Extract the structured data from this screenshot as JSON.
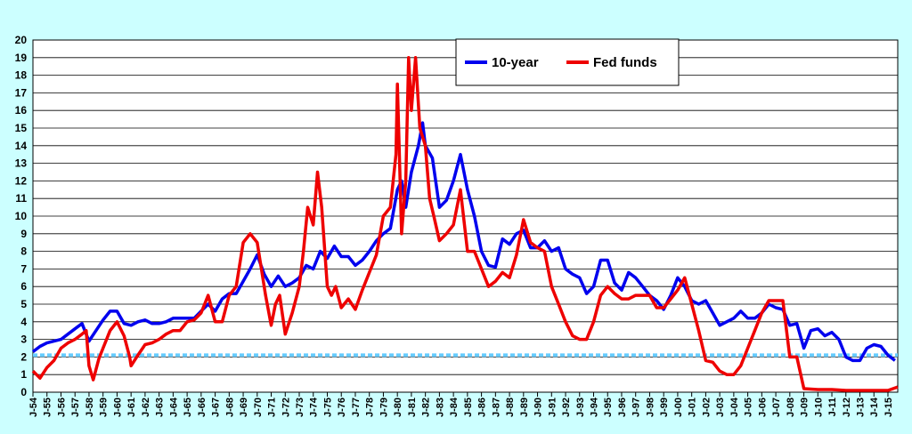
{
  "chart_data": {
    "type": "line",
    "title": "",
    "xlabel": "",
    "ylabel": "",
    "ylim": [
      0,
      20
    ],
    "yticks": [
      "0",
      "1",
      "2",
      "3",
      "4",
      "5",
      "6",
      "7",
      "8",
      "9",
      "10",
      "11",
      "12",
      "13",
      "14",
      "15",
      "16",
      "17",
      "18",
      "19",
      "20"
    ],
    "xlim": [
      1954,
      2015.7
    ],
    "xticks": [
      "J-54",
      "J-55",
      "J-56",
      "J-57",
      "J-58",
      "J-59",
      "J-60",
      "J-61",
      "J-62",
      "J-63",
      "J-64",
      "J-65",
      "J-66",
      "J-67",
      "J-68",
      "J-69",
      "J-70",
      "J-71",
      "J-72",
      "J-73",
      "J-74",
      "J-75",
      "J-76",
      "J-77",
      "J-78",
      "J-79",
      "J-80",
      "J-81",
      "J-82",
      "J-83",
      "J-84",
      "J-85",
      "J-86",
      "J-87",
      "J-88",
      "J-89",
      "J-90",
      "J-91",
      "J-92",
      "J-93",
      "J-94",
      "J-95",
      "J-96",
      "J-97",
      "J-98",
      "J-99",
      "J-00",
      "J-01",
      "J-02",
      "J-03",
      "J-04",
      "J-05",
      "J-06",
      "J-07",
      "J-08",
      "J-09",
      "J-10",
      "J-11",
      "J-12",
      "J-13",
      "J-14",
      "J-15"
    ],
    "grid": true,
    "legend_position": "top-center",
    "reference_line": {
      "value": 2.1,
      "color": "#66ccff"
    },
    "series": [
      {
        "name": "10-year",
        "color": "#0000ee",
        "x": [
          1954,
          1954.5,
          1955,
          1955.5,
          1956,
          1956.5,
          1957,
          1957.5,
          1958,
          1958.5,
          1959,
          1959.5,
          1960,
          1960.5,
          1961,
          1961.5,
          1962,
          1962.5,
          1963,
          1963.5,
          1964,
          1964.5,
          1965,
          1965.5,
          1966,
          1966.5,
          1967,
          1967.5,
          1968,
          1968.5,
          1969,
          1969.5,
          1970,
          1970.5,
          1971,
          1971.5,
          1972,
          1972.5,
          1973,
          1973.5,
          1974,
          1974.5,
          1975,
          1975.5,
          1976,
          1976.5,
          1977,
          1977.5,
          1978,
          1978.5,
          1979,
          1979.5,
          1980,
          1980.3,
          1980.6,
          1981,
          1981.5,
          1981.8,
          1982,
          1982.5,
          1983,
          1983.5,
          1984,
          1984.5,
          1985,
          1985.5,
          1986,
          1986.5,
          1987,
          1987.5,
          1988,
          1988.5,
          1989,
          1989.5,
          1990,
          1990.5,
          1991,
          1991.5,
          1992,
          1992.5,
          1993,
          1993.5,
          1994,
          1994.5,
          1995,
          1995.5,
          1996,
          1996.5,
          1997,
          1997.5,
          1998,
          1998.5,
          1999,
          1999.5,
          2000,
          2000.5,
          2001,
          2001.5,
          2002,
          2002.5,
          2003,
          2003.5,
          2004,
          2004.5,
          2005,
          2005.5,
          2006,
          2006.5,
          2007,
          2007.5,
          2008,
          2008.5,
          2009,
          2009.5,
          2010,
          2010.5,
          2011,
          2011.5,
          2012,
          2012.5,
          2013,
          2013.5,
          2014,
          2014.5,
          2015,
          2015.5
        ],
        "values": [
          2.3,
          2.6,
          2.8,
          2.9,
          3.0,
          3.3,
          3.6,
          3.9,
          2.9,
          3.5,
          4.1,
          4.6,
          4.6,
          3.9,
          3.8,
          4.0,
          4.1,
          3.9,
          3.9,
          4.0,
          4.2,
          4.2,
          4.2,
          4.2,
          4.6,
          5.0,
          4.6,
          5.3,
          5.6,
          5.6,
          6.3,
          7.0,
          7.8,
          6.7,
          6.0,
          6.6,
          6.0,
          6.2,
          6.5,
          7.2,
          7.0,
          8.0,
          7.6,
          8.3,
          7.7,
          7.7,
          7.2,
          7.5,
          8.0,
          8.6,
          9.0,
          9.3,
          11.5,
          12.0,
          10.5,
          12.5,
          14.0,
          15.3,
          14.0,
          13.3,
          10.5,
          10.9,
          12.0,
          13.5,
          11.5,
          10.0,
          8.0,
          7.2,
          7.1,
          8.7,
          8.4,
          9.0,
          9.2,
          8.2,
          8.2,
          8.6,
          8.0,
          8.2,
          7.0,
          6.7,
          6.5,
          5.6,
          6.0,
          7.5,
          7.5,
          6.2,
          5.8,
          6.8,
          6.5,
          6.0,
          5.5,
          5.2,
          4.7,
          5.5,
          6.5,
          6.0,
          5.2,
          5.0,
          5.2,
          4.5,
          3.8,
          4.0,
          4.2,
          4.6,
          4.2,
          4.2,
          4.5,
          5.0,
          4.8,
          4.7,
          3.8,
          3.9,
          2.5,
          3.5,
          3.6,
          3.2,
          3.4,
          3.0,
          2.0,
          1.8,
          1.8,
          2.5,
          2.7,
          2.6,
          2.1,
          1.8
        ]
      },
      {
        "name": "Fed funds",
        "color": "#ee0000",
        "x": [
          1954,
          1954.5,
          1955,
          1955.5,
          1956,
          1956.5,
          1957,
          1957.5,
          1957.8,
          1958,
          1958.3,
          1958.7,
          1959,
          1959.5,
          1960,
          1960.5,
          1960.9,
          1961,
          1961.4,
          1962,
          1962.5,
          1963,
          1963.5,
          1964,
          1964.5,
          1965,
          1965.5,
          1966,
          1966.5,
          1967,
          1967.5,
          1968,
          1968.5,
          1969,
          1969.5,
          1970,
          1970.3,
          1970.6,
          1971,
          1971.3,
          1971.6,
          1972,
          1972.5,
          1973,
          1973.3,
          1973.6,
          1974,
          1974.3,
          1974.6,
          1975,
          1975.3,
          1975.6,
          1976,
          1976.5,
          1977,
          1977.5,
          1978,
          1978.5,
          1979,
          1979.5,
          1979.9,
          1980,
          1980.3,
          1980.6,
          1980.8,
          1981,
          1981.3,
          1981.6,
          1982,
          1982.3,
          1982.6,
          1983,
          1983.5,
          1984,
          1984.5,
          1985,
          1985.5,
          1986,
          1986.5,
          1987,
          1987.5,
          1988,
          1988.5,
          1989,
          1989.5,
          1990,
          1990.5,
          1991,
          1991.5,
          1992,
          1992.5,
          1993,
          1993.5,
          1994,
          1994.5,
          1995,
          1995.5,
          1996,
          1996.5,
          1997,
          1997.5,
          1998,
          1998.5,
          1999,
          1999.5,
          2000,
          2000.5,
          2001,
          2001.5,
          2002,
          2002.5,
          2003,
          2003.5,
          2004,
          2004.5,
          2005,
          2005.5,
          2006,
          2006.5,
          2007,
          2007.5,
          2008,
          2008.5,
          2009,
          2010,
          2011,
          2012,
          2013,
          2014,
          2015,
          2015.7
        ],
        "values": [
          1.2,
          0.8,
          1.4,
          1.8,
          2.5,
          2.8,
          3.0,
          3.3,
          3.5,
          1.5,
          0.7,
          1.9,
          2.5,
          3.5,
          4.0,
          3.2,
          2.0,
          1.5,
          2.0,
          2.7,
          2.8,
          3.0,
          3.3,
          3.5,
          3.5,
          4.0,
          4.1,
          4.5,
          5.5,
          4.0,
          4.0,
          5.5,
          6.0,
          8.5,
          9.0,
          8.5,
          7.0,
          5.5,
          3.8,
          5.0,
          5.5,
          3.3,
          4.5,
          6.0,
          8.0,
          10.5,
          9.5,
          12.5,
          10.5,
          6.0,
          5.5,
          6.0,
          4.8,
          5.3,
          4.7,
          5.8,
          6.8,
          7.8,
          10.0,
          10.5,
          13.5,
          17.5,
          9.0,
          12.0,
          19.0,
          16.0,
          19.0,
          15.0,
          14.0,
          11.0,
          10.0,
          8.6,
          9.0,
          9.5,
          11.5,
          8.0,
          8.0,
          7.0,
          6.0,
          6.3,
          6.8,
          6.5,
          7.8,
          9.8,
          8.5,
          8.2,
          8.0,
          6.0,
          5.0,
          4.0,
          3.2,
          3.0,
          3.0,
          4.0,
          5.5,
          6.0,
          5.6,
          5.3,
          5.3,
          5.5,
          5.5,
          5.5,
          4.8,
          4.8,
          5.3,
          5.8,
          6.5,
          5.0,
          3.5,
          1.8,
          1.7,
          1.2,
          1.0,
          1.0,
          1.5,
          2.5,
          3.5,
          4.5,
          5.2,
          5.2,
          5.2,
          2.0,
          2.0,
          0.2,
          0.15,
          0.15,
          0.1,
          0.1,
          0.1,
          0.1,
          0.3
        ]
      }
    ]
  }
}
